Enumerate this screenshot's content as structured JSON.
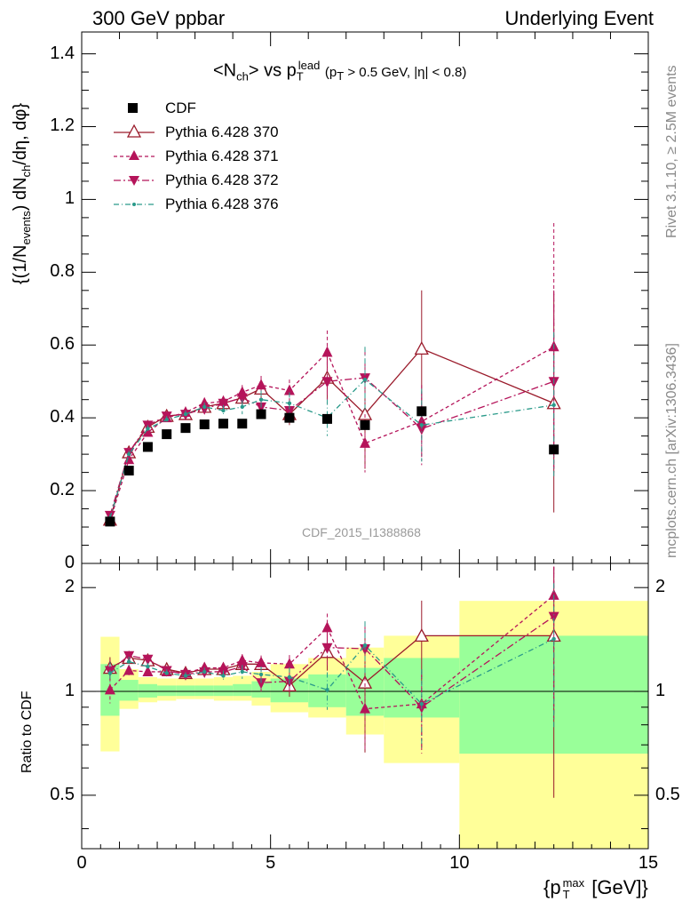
{
  "header": {
    "left": "300 GeV ppbar",
    "right": "Underlying Event"
  },
  "side_labels": {
    "rivet": "Rivet 3.1.10, ≥ 2.5M events",
    "mcplots": "mcplots.cern.ch [arXiv:1306.3436]"
  },
  "watermark": "CDF_2015_I1388868",
  "title": {
    "main_pre": "<N",
    "main_sub": "ch",
    "main_mid": "> vs p",
    "main_sup": "lead",
    "main_sub2": "T",
    "cut": "(p",
    "cut_sub": "T",
    "cut_rest": " > 0.5 GeV, |η| < 0.8)"
  },
  "axes": {
    "ylabel_top": "{(1/N",
    "ylabel_top_sub": "events",
    "ylabel_top_mid": ") dN",
    "ylabel_top_sub2": "ch",
    "ylabel_top_end": "/dη, dφ}",
    "ylabel_ratio": "Ratio to CDF",
    "xlabel_pre": "{p",
    "xlabel_sup": "max",
    "xlabel_sub": "T",
    "xlabel_end": " [GeV]}",
    "x_ticks": [
      "0",
      "5",
      "10",
      "15"
    ],
    "y_ticks_top": [
      "0",
      "0.2",
      "0.4",
      "0.6",
      "0.8",
      "1",
      "1.2",
      "1.4"
    ],
    "y_ticks_ratio": [
      "0.5",
      "1",
      "2"
    ]
  },
  "legend": [
    {
      "label": "CDF"
    },
    {
      "label": "Pythia 6.428 370"
    },
    {
      "label": "Pythia 6.428 371"
    },
    {
      "label": "Pythia 6.428 372"
    },
    {
      "label": "Pythia 6.428 376"
    }
  ],
  "colors": {
    "data": "#000000",
    "p370": "#9a1a2a",
    "p371": "#b5145a",
    "p372": "#b5145a",
    "p376": "#2a9a8a",
    "band_yellow": "#ffff99",
    "band_green": "#99ff99"
  },
  "chart_data": [
    {
      "type": "scatter",
      "panel": "main",
      "xlim": [
        0,
        15
      ],
      "ylim": [
        0,
        1.46
      ],
      "grid": false,
      "legend_position": "top-left",
      "x": [
        0.75,
        1.25,
        1.75,
        2.25,
        2.75,
        3.25,
        3.75,
        4.25,
        4.75,
        5.5,
        6.5,
        7.5,
        9.0,
        12.5
      ],
      "series": [
        {
          "name": "CDF",
          "values": [
            0.115,
            0.255,
            0.32,
            0.355,
            0.372,
            0.382,
            0.384,
            0.384,
            0.41,
            0.4,
            0.397,
            0.38,
            0.418,
            0.313
          ]
        },
        {
          "name": "Pythia 6.428 370",
          "values": [
            0.12,
            0.305,
            0.375,
            0.405,
            0.41,
            0.43,
            0.44,
            0.455,
            0.48,
            0.41,
            0.51,
            0.41,
            0.59,
            0.44
          ],
          "errors": [
            0.01,
            0.01,
            0.01,
            0.01,
            0.01,
            0.012,
            0.015,
            0.02,
            0.025,
            0.03,
            0.06,
            0.15,
            0.16,
            0.3
          ]
        },
        {
          "name": "Pythia 6.428 371",
          "values": [
            0.117,
            0.285,
            0.36,
            0.4,
            0.415,
            0.44,
            0.445,
            0.47,
            0.49,
            0.475,
            0.58,
            0.33,
            0.39,
            0.595
          ],
          "errors": [
            0.01,
            0.01,
            0.01,
            0.01,
            0.01,
            0.012,
            0.015,
            0.02,
            0.025,
            0.03,
            0.06,
            0.08,
            0.1,
            0.34
          ]
        },
        {
          "name": "Pythia 6.428 372",
          "values": [
            0.132,
            0.305,
            0.38,
            0.405,
            0.41,
            0.425,
            0.44,
            0.455,
            0.43,
            0.42,
            0.5,
            0.51,
            0.37,
            0.5
          ],
          "errors": [
            0.01,
            0.01,
            0.01,
            0.01,
            0.01,
            0.012,
            0.015,
            0.02,
            0.025,
            0.03,
            0.06,
            0.08,
            0.1,
            0.25
          ]
        },
        {
          "name": "Pythia 6.428 376",
          "values": [
            0.125,
            0.3,
            0.37,
            0.395,
            0.41,
            0.43,
            0.42,
            0.43,
            0.45,
            0.44,
            0.4,
            0.505,
            0.38,
            0.435
          ],
          "errors": [
            0.01,
            0.01,
            0.01,
            0.01,
            0.01,
            0.012,
            0.015,
            0.02,
            0.025,
            0.03,
            0.05,
            0.09,
            0.1,
            0.2
          ]
        }
      ]
    },
    {
      "type": "scatter",
      "panel": "ratio",
      "xlim": [
        0,
        15
      ],
      "ylim": [
        0.35,
        2.35
      ],
      "log_y": true,
      "reference_line": 1,
      "bin_edges": [
        0.5,
        1.0,
        1.5,
        2.0,
        2.5,
        3.0,
        3.5,
        4.0,
        4.5,
        5.0,
        6.0,
        7.0,
        8.0,
        10.0,
        15.0
      ],
      "band_yellow": {
        "low": [
          0.67,
          0.89,
          0.93,
          0.94,
          0.95,
          0.95,
          0.94,
          0.94,
          0.91,
          0.87,
          0.84,
          0.75,
          0.62,
          0.31
        ],
        "high": [
          1.44,
          1.16,
          1.1,
          1.09,
          1.09,
          1.09,
          1.1,
          1.11,
          1.14,
          1.2,
          1.25,
          1.34,
          1.45,
          1.83
        ]
      },
      "band_green": {
        "low": [
          0.85,
          0.94,
          0.96,
          0.97,
          0.97,
          0.97,
          0.97,
          0.97,
          0.96,
          0.93,
          0.9,
          0.85,
          0.84,
          0.66
        ],
        "high": [
          1.2,
          1.08,
          1.05,
          1.04,
          1.04,
          1.04,
          1.04,
          1.05,
          1.07,
          1.09,
          1.12,
          1.17,
          1.25,
          1.45
        ]
      },
      "x": [
        0.75,
        1.25,
        1.75,
        2.25,
        2.75,
        3.25,
        3.75,
        4.25,
        4.75,
        5.5,
        6.5,
        7.5,
        9.0,
        12.5
      ],
      "series": [
        {
          "name": "Pythia 6.428 370",
          "values": [
            1.17,
            1.25,
            1.23,
            1.16,
            1.13,
            1.16,
            1.16,
            1.2,
            1.2,
            1.04,
            1.3,
            1.06,
            1.45,
            1.45
          ]
        },
        {
          "name": "Pythia 6.428 371",
          "values": [
            1.01,
            1.15,
            1.14,
            1.14,
            1.13,
            1.17,
            1.17,
            1.23,
            1.21,
            1.2,
            1.53,
            0.89,
            0.92,
            1.9
          ]
        },
        {
          "name": "Pythia 6.428 372",
          "values": [
            1.15,
            1.27,
            1.24,
            1.15,
            1.12,
            1.14,
            1.14,
            1.18,
            1.06,
            1.07,
            1.34,
            1.33,
            0.9,
            1.65
          ]
        },
        {
          "name": "Pythia 6.428 376",
          "values": [
            1.13,
            1.22,
            1.18,
            1.13,
            1.11,
            1.14,
            1.11,
            1.14,
            1.12,
            1.1,
            1.01,
            1.36,
            0.92,
            1.42
          ]
        }
      ]
    }
  ]
}
